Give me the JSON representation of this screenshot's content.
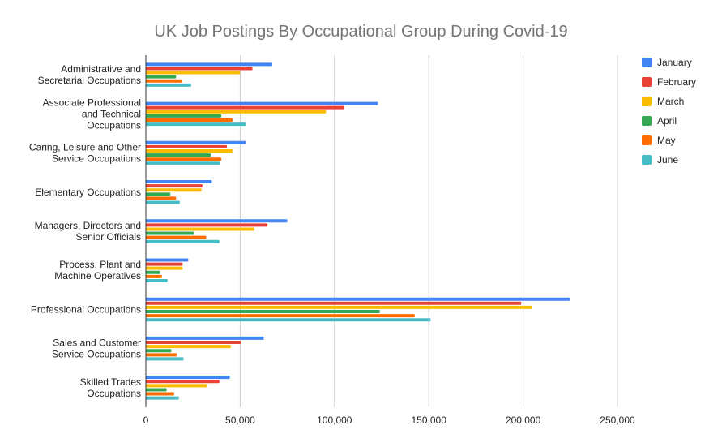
{
  "chart_data": {
    "type": "bar",
    "orientation": "horizontal",
    "title": "UK Job Postings By Occupational Group During Covid-19",
    "xlabel": "",
    "ylabel": "",
    "xlim": [
      0,
      250000
    ],
    "x_ticks": [
      0,
      50000,
      100000,
      150000,
      200000,
      250000
    ],
    "x_tick_labels": [
      "0",
      "50,000",
      "100,000",
      "150,000",
      "200,000",
      "250,000"
    ],
    "grid": "vertical",
    "legend_position": "right",
    "categories": [
      [
        "Administrative and",
        "Secretarial Occupations"
      ],
      [
        "Associate Professional",
        "and Technical",
        "Occupations"
      ],
      [
        "Caring, Leisure and Other",
        "Service Occupations"
      ],
      [
        "Elementary Occupations"
      ],
      [
        "Managers, Directors and",
        "Senior Officials"
      ],
      [
        "Process, Plant and",
        "Machine Operatives"
      ],
      [
        "Professional Occupations"
      ],
      [
        "Sales and Customer",
        "Service Occupations"
      ],
      [
        "Skilled Trades",
        "Occupations"
      ]
    ],
    "series": [
      {
        "name": "January",
        "color": "#4285f4",
        "values": [
          67000,
          123000,
          53000,
          35000,
          75000,
          22500,
          225000,
          62500,
          44500
        ]
      },
      {
        "name": "February",
        "color": "#ea4335",
        "values": [
          56500,
          105000,
          43000,
          30000,
          64500,
          19500,
          199000,
          50500,
          39000
        ]
      },
      {
        "name": "March",
        "color": "#fbbc04",
        "values": [
          50000,
          95500,
          46000,
          29500,
          57500,
          19500,
          204500,
          45000,
          32500
        ]
      },
      {
        "name": "April",
        "color": "#34a853",
        "values": [
          16000,
          40000,
          34500,
          13000,
          25500,
          7500,
          124000,
          13500,
          11000
        ]
      },
      {
        "name": "May",
        "color": "#ff6d01",
        "values": [
          19000,
          46000,
          40000,
          16000,
          32000,
          8500,
          142500,
          16500,
          15000
        ]
      },
      {
        "name": "June",
        "color": "#46bdc6",
        "values": [
          24000,
          53000,
          39500,
          18000,
          39000,
          11500,
          151000,
          20000,
          17500
        ]
      }
    ]
  }
}
